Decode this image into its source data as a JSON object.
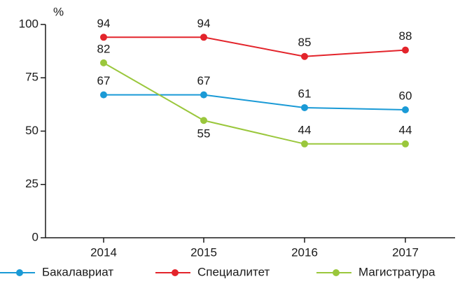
{
  "chart_data": {
    "type": "line",
    "y_unit": "%",
    "categories": [
      "2014",
      "2015",
      "2016",
      "2017"
    ],
    "series": [
      {
        "name": "Бакалавриат",
        "color": "#1a9ad6",
        "values": [
          67,
          67,
          61,
          60
        ]
      },
      {
        "name": "Специалитет",
        "color": "#e3242b",
        "values": [
          94,
          94,
          85,
          88
        ]
      },
      {
        "name": "Магистратура",
        "color": "#9ac73c",
        "values": [
          82,
          55,
          44,
          44
        ]
      }
    ],
    "ylim": [
      0,
      100
    ],
    "yticks": [
      0,
      25,
      50,
      75,
      100
    ],
    "grid": false,
    "legend": "bottom"
  }
}
